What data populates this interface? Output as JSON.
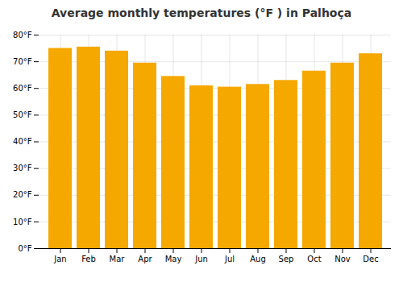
{
  "chart_data": {
    "type": "bar",
    "title": "Average monthly temperatures (°F ) in Palhoça",
    "categories": [
      "Jan",
      "Feb",
      "Mar",
      "Apr",
      "May",
      "Jun",
      "Jul",
      "Aug",
      "Sep",
      "Oct",
      "Nov",
      "Dec"
    ],
    "values": [
      75,
      75.5,
      74,
      69.5,
      64.5,
      61,
      60.5,
      61.5,
      63,
      66.5,
      69.5,
      73
    ],
    "color": "#F5A800",
    "ylim": [
      0,
      80
    ],
    "yticks": [
      {
        "value": 0,
        "label": "0°F"
      },
      {
        "value": 10,
        "label": "10°F"
      },
      {
        "value": 20,
        "label": "20°F"
      },
      {
        "value": 30,
        "label": "30°F"
      },
      {
        "value": 40,
        "label": "40°F"
      },
      {
        "value": 50,
        "label": "50°F"
      },
      {
        "value": 60,
        "label": "60°F"
      },
      {
        "value": 70,
        "label": "70°F"
      },
      {
        "value": 80,
        "label": "80°F"
      }
    ],
    "grid": true
  }
}
